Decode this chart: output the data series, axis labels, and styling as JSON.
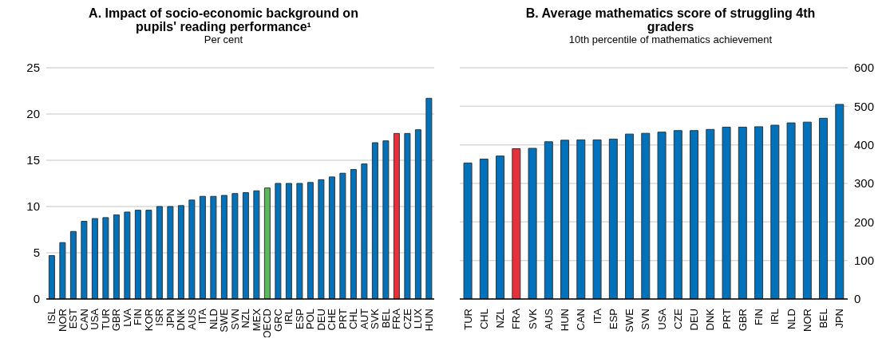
{
  "chart_data": [
    {
      "type": "bar",
      "title": "A. Impact of socio-economic background on pupils' reading performance¹",
      "subtitle": "Per cent",
      "categories": [
        "ISL",
        "NOR",
        "EST",
        "CAN",
        "USA",
        "TUR",
        "GBR",
        "LVA",
        "FIN",
        "KOR",
        "ISR",
        "JPN",
        "DNK",
        "AUS",
        "ITA",
        "NLD",
        "SWE",
        "SVN",
        "NZL",
        "MEX",
        "OECD",
        "GRC",
        "IRL",
        "ESP",
        "POL",
        "DEU",
        "CHE",
        "PRT",
        "CHL",
        "AUT",
        "SVK",
        "BEL",
        "FRA",
        "CZE",
        "LUX",
        "HUN"
      ],
      "values": [
        4.7,
        6.1,
        7.3,
        8.4,
        8.7,
        8.8,
        9.1,
        9.4,
        9.6,
        9.6,
        10.0,
        10.0,
        10.1,
        10.7,
        11.1,
        11.1,
        11.2,
        11.4,
        11.5,
        11.7,
        12.0,
        12.5,
        12.5,
        12.5,
        12.6,
        12.9,
        13.2,
        13.6,
        14.0,
        14.6,
        16.9,
        17.1,
        17.9,
        17.9,
        18.3,
        21.7
      ],
      "colors": [
        "#0072bb",
        "#0072bb",
        "#0072bb",
        "#0072bb",
        "#0072bb",
        "#0072bb",
        "#0072bb",
        "#0072bb",
        "#0072bb",
        "#0072bb",
        "#0072bb",
        "#0072bb",
        "#0072bb",
        "#0072bb",
        "#0072bb",
        "#0072bb",
        "#0072bb",
        "#0072bb",
        "#0072bb",
        "#0072bb",
        "#5cb85c",
        "#0072bb",
        "#0072bb",
        "#0072bb",
        "#0072bb",
        "#0072bb",
        "#0072bb",
        "#0072bb",
        "#0072bb",
        "#0072bb",
        "#0072bb",
        "#0072bb",
        "#e8303a",
        "#0072bb",
        "#0072bb",
        "#0072bb"
      ],
      "ylim": [
        0,
        25
      ],
      "yticks": [
        0,
        5,
        10,
        15,
        20,
        25
      ],
      "grid": "y",
      "legend": false
    },
    {
      "type": "bar",
      "title": "B. Average mathematics score of struggling 4th graders",
      "subtitle": "10th percentile of mathematics achievement",
      "categories": [
        "TUR",
        "CHL",
        "NZL",
        "FRA",
        "SVK",
        "AUS",
        "HUN",
        "CAN",
        "ITA",
        "ESP",
        "SWE",
        "SVN",
        "USA",
        "CZE",
        "DEU",
        "DNK",
        "PRT",
        "GBR",
        "FIN",
        "IRL",
        "NLD",
        "NOR",
        "BEL",
        "JPN"
      ],
      "series": [
        {
          "axis": "y2",
          "values": [
            353,
            363,
            371,
            390,
            391,
            408,
            412,
            413,
            413,
            415,
            428,
            430,
            433,
            437,
            437,
            440,
            446,
            446,
            447,
            451,
            457,
            459,
            469,
            505
          ],
          "colors": [
            "#0072bb",
            "#0072bb",
            "#0072bb",
            "#e8303a",
            "#0072bb",
            "#0072bb",
            "#0072bb",
            "#0072bb",
            "#0072bb",
            "#0072bb",
            "#0072bb",
            "#0072bb",
            "#0072bb",
            "#0072bb",
            "#0072bb",
            "#0072bb",
            "#0072bb",
            "#0072bb",
            "#0072bb",
            "#0072bb",
            "#0072bb",
            "#0072bb",
            "#0072bb",
            "#0072bb"
          ]
        }
      ],
      "y2lim": [
        0,
        600
      ],
      "y2ticks": [
        0,
        100,
        200,
        300,
        400,
        500,
        600
      ],
      "grid": "y",
      "legend": false
    }
  ]
}
